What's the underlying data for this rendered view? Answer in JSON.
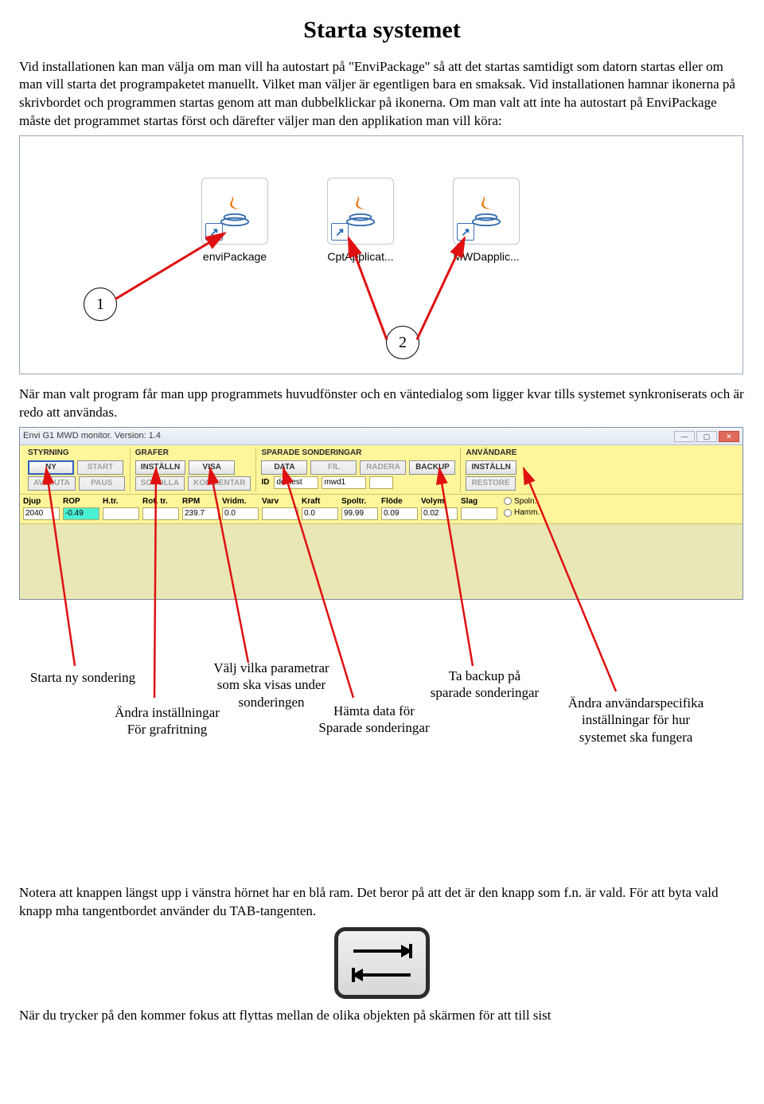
{
  "title": "Starta systemet",
  "para1": "Vid installationen kan man välja om man vill ha autostart på \"EnviPackage\" så att det startas samtidigt som datorn startas eller om man vill starta det programpaketet manuellt. Vilket man väljer är egentligen bara en smaksak. Vid installationen hamnar ikonerna på skrivbordet och programmen startas genom att man dubbelklickar på ikonerna. Om man valt att inte ha autostart på EnviPackage måste det programmet startas först och därefter väljer man den applikation man vill köra:",
  "desktop": {
    "icons": [
      {
        "label": "enviPackage"
      },
      {
        "label": "CptApplicat..."
      },
      {
        "label": "MWDapplic..."
      }
    ],
    "callout1": "1",
    "callout2": "2"
  },
  "para2": "När man valt program får man upp programmets huvudfönster och en väntedialog som ligger kvar tills systemet synkroniserats och är redo att användas.",
  "mwd": {
    "title": "Envi G1 MWD monitor. Version: 1.4",
    "groups": {
      "styrning": {
        "title": "STYRNING",
        "ny": "NY",
        "start": "START",
        "avsluta": "AVSLUTA",
        "paus": "PAUS"
      },
      "grafer": {
        "title": "GRAFER",
        "install": "INSTÄLLN",
        "visa": "VISA",
        "scrolla": "SCROLLA",
        "komment": "KOMMENTAR"
      },
      "sparade": {
        "title": "SPARADE SONDERINGAR",
        "data": "DATA",
        "fil": "FIL",
        "radera": "RADERA",
        "backup": "BACKUP",
        "idlabel": "ID",
        "id1": "devtest",
        "id2": "mwd1"
      },
      "anvandare": {
        "title": "ANVÄNDARE",
        "install": "INSTÄLLN",
        "restore": "RESTORE"
      }
    },
    "params": [
      {
        "label": "Djup",
        "value": "2040"
      },
      {
        "label": "ROP",
        "value": "-0.49",
        "neg": true
      },
      {
        "label": "H.tr.",
        "value": ""
      },
      {
        "label": "Rot. tr.",
        "value": ""
      },
      {
        "label": "RPM",
        "value": "239.7"
      },
      {
        "label": "Vridm.",
        "value": "0.0"
      },
      {
        "label": "Varv",
        "value": ""
      },
      {
        "label": "Kraft",
        "value": "0.0"
      },
      {
        "label": "Spoltr.",
        "value": "99.99"
      },
      {
        "label": "Flöde",
        "value": "0.09"
      },
      {
        "label": "Volym",
        "value": "0.02"
      },
      {
        "label": "Slag",
        "value": ""
      }
    ],
    "radios": {
      "spoln": "Spoln.",
      "hamm": "Hamm."
    }
  },
  "annotations": {
    "a1": "Starta ny sondering",
    "a2": "Ändra inställningar\nFör grafritning",
    "a3": "Välj vilka parametrar\nsom ska visas under\nsonderingen",
    "a4": "Hämta data för\nSparade sonderingar",
    "a5": "Ta backup på\nsparade sonderingar",
    "a6": "Ändra användarspecifika\ninställningar för hur\nsystemet ska fungera"
  },
  "para3_a": "Notera att knappen längst upp i vänstra hörnet har en blå ram. ",
  "para3_b": "Det beror på att det är den knapp som f.n. är vald. ",
  "para3_c": "För att byta vald knapp mha tangentbordet använder du TAB-tangenten.",
  "para4": "När du trycker på den kommer fokus att flyttas mellan de olika objekten på skärmen för att till sist",
  "colors": {
    "arrow": "#e01010",
    "blueframe": "#2f5fc2",
    "panel_yellow": "#fff59a",
    "body_green": "#e8e7b5",
    "neg_cell": "#4af0d3"
  }
}
